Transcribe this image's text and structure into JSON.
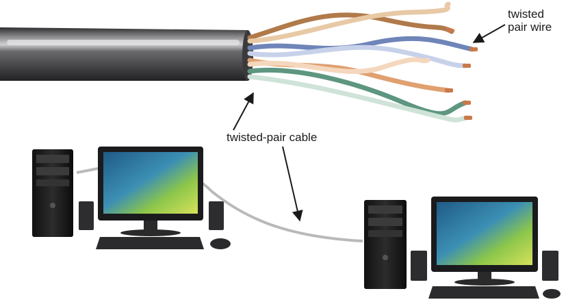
{
  "labels": {
    "twisted_pair_wire_line1": "twisted",
    "twisted_pair_wire_line2": "pair wire",
    "twisted_pair_cable": "twisted-pair cable"
  },
  "icons": {
    "cable": "cable-icon",
    "wire_pairs": "twisted-wire-pairs-icon",
    "computer": "desktop-computer-icon",
    "tower": "tower-case-icon",
    "monitor": "monitor-icon",
    "keyboard": "keyboard-icon",
    "mouse": "mouse-icon",
    "speaker": "speaker-icon",
    "arrow": "arrow-icon"
  },
  "colors": {
    "jacket": "#4a4a4c",
    "wire_brown": "#b07a4a",
    "wire_blue": "#6f85b8",
    "wire_orange": "#e0a070",
    "wire_green": "#5e9680",
    "copper": "#c9794a",
    "screen_green": "#7fbf4a",
    "screen_blue": "#2f6fa0"
  }
}
